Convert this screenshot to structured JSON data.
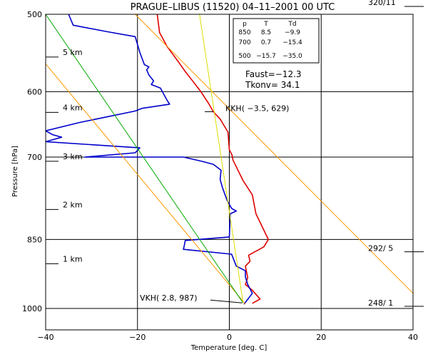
{
  "chart_data": {
    "type": "line",
    "title": "PRAGUE–LIBUS (11520)    04–11–2001  00  UTC",
    "xlabel": "Temperature [deg. C]",
    "ylabel": "Pressure [hPa]",
    "xlim": [
      -40,
      40
    ],
    "ylim": [
      1000,
      500
    ],
    "y_scale": "log",
    "grid": true,
    "x_ticks": [
      -40,
      -20,
      0,
      20,
      40
    ],
    "x_tick_labels": [
      "−40",
      "−20",
      "0",
      "20",
      "40"
    ],
    "y_ticks": [
      500,
      600,
      700,
      850,
      1000
    ],
    "y_tick_labels": [
      "500",
      "600",
      "700",
      "850",
      "1000"
    ],
    "height_markers": [
      {
        "label": "5 km",
        "p": 553
      },
      {
        "label": "4 km",
        "p": 630
      },
      {
        "label": "3 km",
        "p": 707
      },
      {
        "label": "2 km",
        "p": 792
      },
      {
        "label": "1 km",
        "p": 900
      }
    ],
    "series": [
      {
        "kind": "temperature",
        "color": "#e00000",
        "points": [
          [
            5.0,
            988
          ],
          [
            6.7,
            978
          ],
          [
            5.0,
            958
          ],
          [
            3.5,
            945
          ],
          [
            4.0,
            930
          ],
          [
            3.5,
            905
          ],
          [
            4.5,
            895
          ],
          [
            4.2,
            882
          ],
          [
            7.5,
            865
          ],
          [
            8.5,
            850
          ],
          [
            5.8,
            800
          ],
          [
            5.0,
            765
          ],
          [
            3.0,
            740
          ],
          [
            0.8,
            705
          ],
          [
            0.6,
            697
          ],
          [
            0.0,
            688
          ],
          [
            -0.3,
            660
          ],
          [
            -2.0,
            640
          ],
          [
            -3.5,
            629
          ],
          [
            -4.5,
            617
          ],
          [
            -6.2,
            600
          ],
          [
            -8.0,
            585
          ],
          [
            -9.5,
            573
          ],
          [
            -11.0,
            560
          ],
          [
            -13.5,
            540
          ],
          [
            -15.2,
            522
          ],
          [
            -15.7,
            500
          ]
        ]
      },
      {
        "kind": "dewpoint",
        "color": "#0000cc",
        "points": [
          [
            3.2,
            990
          ],
          [
            5.0,
            965
          ],
          [
            4.5,
            955
          ],
          [
            4.0,
            945
          ],
          [
            3.5,
            928
          ],
          [
            3.5,
            915
          ],
          [
            1.5,
            905
          ],
          [
            0.5,
            880
          ],
          [
            -10.0,
            870
          ],
          [
            -9.8,
            862
          ],
          [
            -9.6,
            852
          ],
          [
            0.0,
            845
          ],
          [
            0.2,
            800
          ],
          [
            1.5,
            795
          ],
          [
            0.5,
            790
          ],
          [
            -0.5,
            775
          ],
          [
            -1.5,
            752
          ],
          [
            -2.0,
            738
          ],
          [
            -1.8,
            722
          ],
          [
            -3.5,
            712
          ],
          [
            -6.0,
            707
          ],
          [
            -10.0,
            700
          ],
          [
            -31.5,
            700
          ],
          [
            -20.5,
            693
          ],
          [
            -19.5,
            685
          ],
          [
            -40.0,
            675
          ],
          [
            -36.5,
            668
          ],
          [
            -38.5,
            664
          ],
          [
            -40.0,
            658
          ],
          [
            -32.5,
            645
          ],
          [
            -20.5,
            628
          ],
          [
            -19.0,
            624
          ],
          [
            -13.0,
            618
          ],
          [
            -13.5,
            613
          ],
          [
            -14.0,
            607
          ],
          [
            -15.0,
            595
          ],
          [
            -17.0,
            590
          ],
          [
            -16.5,
            585
          ],
          [
            -17.5,
            577
          ],
          [
            -18.0,
            570
          ],
          [
            -17.5,
            566
          ],
          [
            -18.5,
            563
          ],
          [
            -19.5,
            547
          ],
          [
            -20.0,
            537
          ],
          [
            -20.5,
            527
          ],
          [
            -26.5,
            521
          ],
          [
            -34.0,
            513
          ],
          [
            -35.0,
            500
          ]
        ]
      },
      {
        "kind": "dry-adiabat-vkh",
        "color": "#ff9900",
        "points": [
          [
            -40.0,
            562
          ],
          [
            3.5,
            990
          ]
        ]
      },
      {
        "kind": "dry-adiabat-1000",
        "color": "#ff9900",
        "points": [
          [
            -20.5,
            500
          ],
          [
            40.0,
            965
          ]
        ]
      },
      {
        "kind": "saturated-adiabat",
        "color": "#00aa00",
        "points": [
          [
            -40.0,
            500
          ],
          [
            3.0,
            987
          ]
        ]
      },
      {
        "kind": "mixing-ratio",
        "color": "#dddd00",
        "points": [
          [
            -6.5,
            500
          ],
          [
            3.0,
            987
          ]
        ]
      }
    ],
    "annotations": [
      {
        "text": "KKH( −3.5, 629)",
        "x": -3.5,
        "p": 629
      },
      {
        "text": "VKH(   2.8, 987)",
        "x": 2.8,
        "p": 987
      }
    ],
    "indices": [
      {
        "text": "Faust=−12.3"
      },
      {
        "text": "Tkonv=  34.1"
      }
    ],
    "right_labels": [
      {
        "text": "320/11",
        "p": 500
      },
      {
        "text": "292/  5",
        "p": 875
      },
      {
        "text": "248/  1",
        "p": 995
      }
    ],
    "table": {
      "headers": [
        "p",
        "T",
        "Td"
      ],
      "rows": [
        [
          "850",
          "8.5",
          "−9.9"
        ],
        [
          "700",
          "0.7",
          "−15.4"
        ],
        [
          "500",
          "−15.7",
          "−35.0"
        ]
      ]
    }
  }
}
